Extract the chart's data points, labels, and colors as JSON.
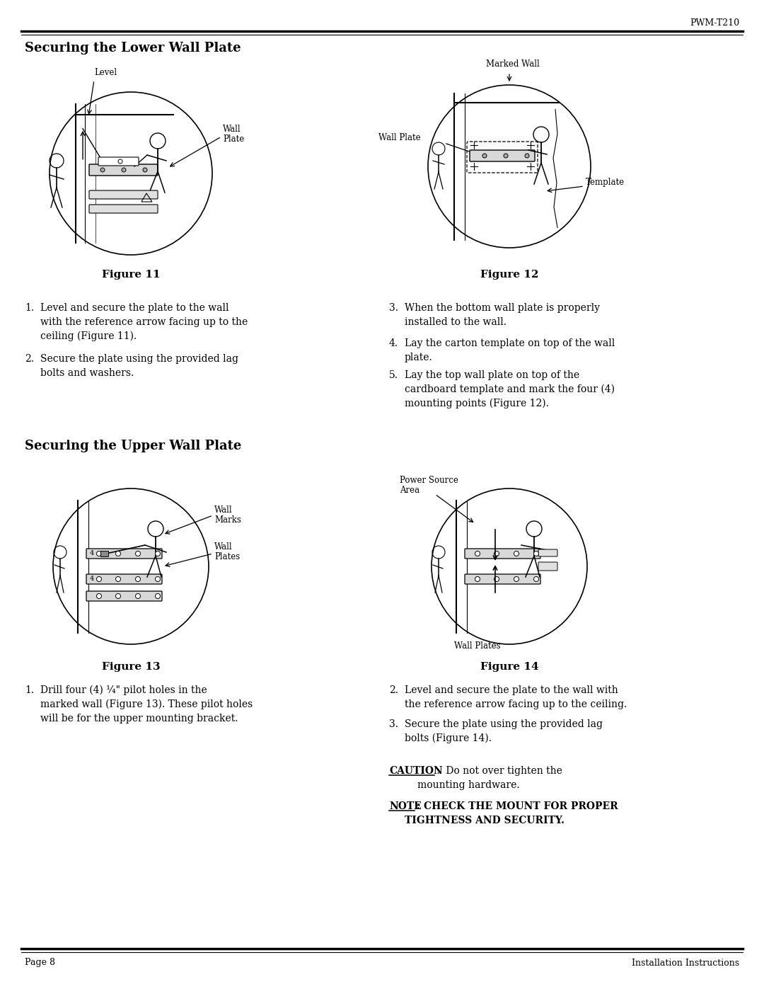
{
  "page_width": 10.8,
  "page_height": 13.97,
  "dpi": 100,
  "background_color": "#ffffff",
  "header_model": "PWM-T210",
  "section1_title": "Securing the Lower Wall Plate",
  "section2_title": "Securing the Upper Wall Plate",
  "footer_left": "Page 8",
  "footer_right": "Installation Instructions",
  "fig11_caption": "Figure 11",
  "fig12_caption": "Figure 12",
  "fig13_caption": "Figure 13",
  "fig14_caption": "Figure 14"
}
